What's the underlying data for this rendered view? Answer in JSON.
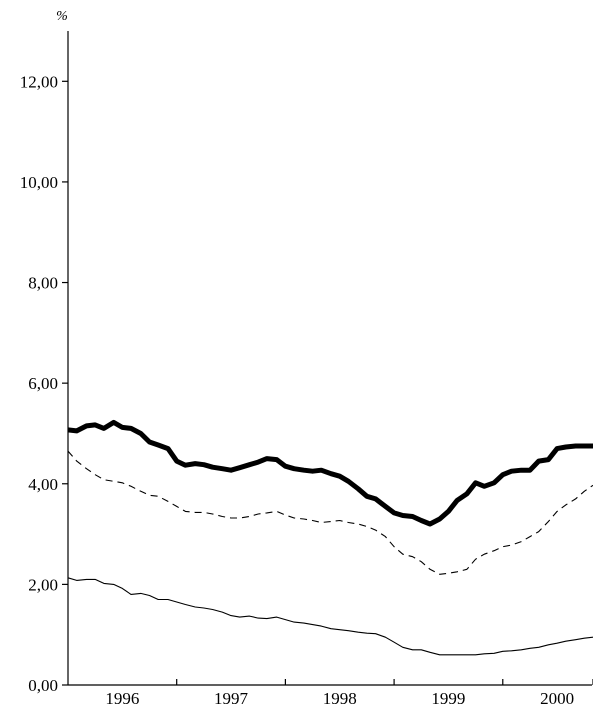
{
  "chart_data": {
    "type": "line",
    "title": "",
    "xlabel": "",
    "ylabel": "%",
    "ylim": [
      0,
      13
    ],
    "xlim": [
      1995.5,
      2000.33
    ],
    "grid": false,
    "y_ticks": [
      "0,00",
      "2,00",
      "4,00",
      "6,00",
      "8,00",
      "10,00",
      "12,00"
    ],
    "y_tick_values": [
      0,
      2,
      4,
      6,
      8,
      10,
      12
    ],
    "x_ticks": [
      "1996",
      "1997",
      "1998",
      "1999",
      "2000"
    ],
    "x_tick_values": [
      1996,
      1997,
      1998,
      1999,
      2000
    ],
    "x_boundaries": [
      1995.5,
      1996.5,
      1997.5,
      1998.5,
      1999.5,
      2000.33
    ],
    "series": [
      {
        "style": "thick-solid",
        "color": "#000000",
        "x": [
          1995.5,
          1995.58,
          1995.67,
          1995.75,
          1995.83,
          1995.92,
          1996.0,
          1996.08,
          1996.17,
          1996.25,
          1996.33,
          1996.42,
          1996.5,
          1996.58,
          1996.67,
          1996.75,
          1996.83,
          1996.92,
          1997.0,
          1997.08,
          1997.17,
          1997.25,
          1997.33,
          1997.42,
          1997.5,
          1997.58,
          1997.67,
          1997.75,
          1997.83,
          1997.92,
          1998.0,
          1998.08,
          1998.17,
          1998.25,
          1998.33,
          1998.42,
          1998.5,
          1998.58,
          1998.67,
          1998.75,
          1998.83,
          1998.92,
          1999.0,
          1999.08,
          1999.17,
          1999.25,
          1999.33,
          1999.42,
          1999.5,
          1999.58,
          1999.67,
          1999.75,
          1999.83,
          1999.92,
          2000.0,
          2000.08,
          2000.17,
          2000.25,
          2000.33
        ],
        "values": [
          5.07,
          5.05,
          5.15,
          5.17,
          5.1,
          5.22,
          5.12,
          5.1,
          5.0,
          4.83,
          4.77,
          4.7,
          4.45,
          4.37,
          4.4,
          4.38,
          4.33,
          4.3,
          4.27,
          4.32,
          4.38,
          4.43,
          4.5,
          4.48,
          4.35,
          4.3,
          4.27,
          4.25,
          4.27,
          4.2,
          4.15,
          4.05,
          3.9,
          3.75,
          3.7,
          3.55,
          3.42,
          3.37,
          3.35,
          3.27,
          3.2,
          3.3,
          3.45,
          3.67,
          3.8,
          4.02,
          3.95,
          4.02,
          4.18,
          4.25,
          4.27,
          4.27,
          4.45,
          4.48,
          4.7,
          4.73,
          4.75,
          4.75,
          4.75
        ]
      },
      {
        "style": "dashed",
        "color": "#000000",
        "x": [
          1995.5,
          1995.58,
          1995.67,
          1995.75,
          1995.83,
          1995.92,
          1996.0,
          1996.08,
          1996.17,
          1996.25,
          1996.33,
          1996.42,
          1996.5,
          1996.58,
          1996.67,
          1996.75,
          1996.83,
          1996.92,
          1997.0,
          1997.08,
          1997.17,
          1997.25,
          1997.33,
          1997.42,
          1997.5,
          1997.58,
          1997.67,
          1997.75,
          1997.83,
          1997.92,
          1998.0,
          1998.08,
          1998.17,
          1998.25,
          1998.33,
          1998.42,
          1998.5,
          1998.58,
          1998.67,
          1998.75,
          1998.83,
          1998.92,
          1999.0,
          1999.08,
          1999.17,
          1999.25,
          1999.33,
          1999.42,
          1999.5,
          1999.58,
          1999.67,
          1999.75,
          1999.83,
          1999.92,
          2000.0,
          2000.08,
          2000.17,
          2000.25,
          2000.33
        ],
        "values": [
          4.65,
          4.45,
          4.3,
          4.18,
          4.08,
          4.05,
          4.02,
          3.95,
          3.85,
          3.77,
          3.75,
          3.65,
          3.55,
          3.45,
          3.43,
          3.43,
          3.4,
          3.35,
          3.32,
          3.32,
          3.35,
          3.4,
          3.42,
          3.45,
          3.38,
          3.32,
          3.3,
          3.27,
          3.23,
          3.25,
          3.27,
          3.23,
          3.2,
          3.15,
          3.08,
          2.95,
          2.75,
          2.6,
          2.55,
          2.45,
          2.3,
          2.2,
          2.22,
          2.25,
          2.3,
          2.5,
          2.6,
          2.67,
          2.75,
          2.78,
          2.85,
          2.95,
          3.05,
          3.25,
          3.45,
          3.58,
          3.7,
          3.85,
          3.97
        ]
      },
      {
        "style": "thin-solid",
        "color": "#000000",
        "x": [
          1995.5,
          1995.58,
          1995.67,
          1995.75,
          1995.83,
          1995.92,
          1996.0,
          1996.08,
          1996.17,
          1996.25,
          1996.33,
          1996.42,
          1996.5,
          1996.58,
          1996.67,
          1996.75,
          1996.83,
          1996.92,
          1997.0,
          1997.08,
          1997.17,
          1997.25,
          1997.33,
          1997.42,
          1997.5,
          1997.58,
          1997.67,
          1997.75,
          1997.83,
          1997.92,
          1998.0,
          1998.08,
          1998.17,
          1998.25,
          1998.33,
          1998.42,
          1998.5,
          1998.58,
          1998.67,
          1998.75,
          1998.83,
          1998.92,
          1999.0,
          1999.08,
          1999.17,
          1999.25,
          1999.33,
          1999.42,
          1999.5,
          1999.58,
          1999.67,
          1999.75,
          1999.83,
          1999.92,
          2000.0,
          2000.08,
          2000.17,
          2000.25,
          2000.33
        ],
        "values": [
          2.13,
          2.08,
          2.1,
          2.1,
          2.02,
          2.0,
          1.92,
          1.8,
          1.82,
          1.78,
          1.7,
          1.7,
          1.65,
          1.6,
          1.55,
          1.53,
          1.5,
          1.45,
          1.38,
          1.35,
          1.37,
          1.33,
          1.32,
          1.35,
          1.3,
          1.25,
          1.23,
          1.2,
          1.17,
          1.12,
          1.1,
          1.08,
          1.05,
          1.03,
          1.02,
          0.95,
          0.85,
          0.75,
          0.7,
          0.7,
          0.65,
          0.6,
          0.6,
          0.6,
          0.6,
          0.6,
          0.62,
          0.63,
          0.67,
          0.68,
          0.7,
          0.73,
          0.75,
          0.8,
          0.83,
          0.87,
          0.9,
          0.93,
          0.95
        ]
      }
    ]
  }
}
